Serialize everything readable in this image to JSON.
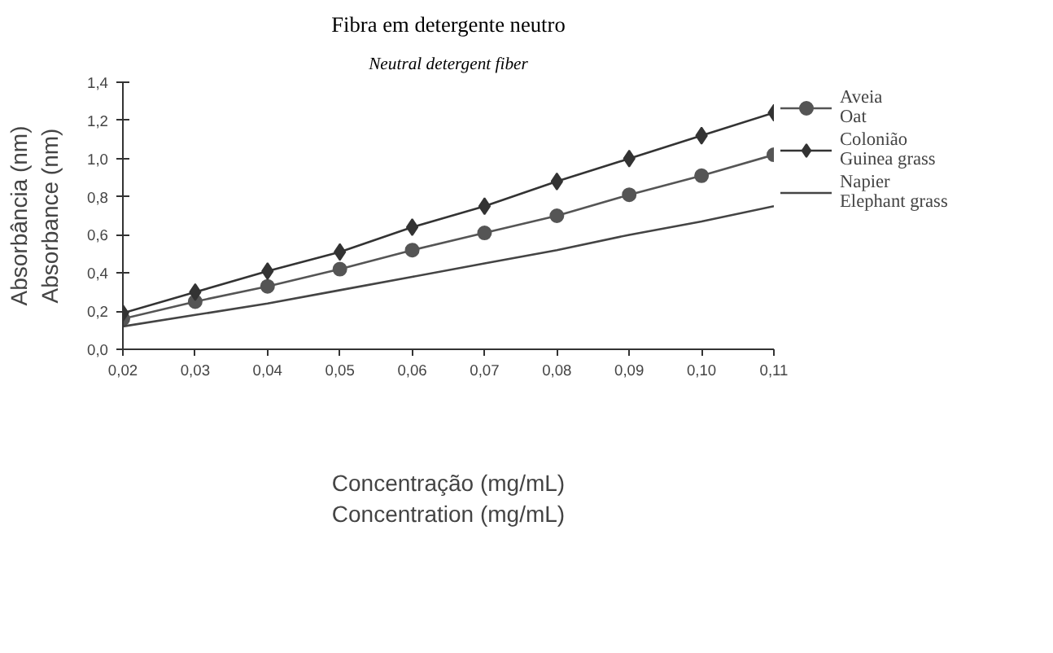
{
  "chart_data": {
    "type": "line",
    "title": "Fibra em detergente neutro",
    "subtitle": "Neutral detergent fiber",
    "xlabel": "Concentração (mg/mL)\nConcentration (mg/mL)",
    "ylabel": "Absorbância (nm)\nAbsorbance (nm)",
    "x": [
      0.02,
      0.03,
      0.04,
      0.05,
      0.06,
      0.07,
      0.08,
      0.09,
      0.1,
      0.11
    ],
    "series": [
      {
        "name": "Aveia\nOat",
        "color": "#555555",
        "marker": "circle",
        "values": [
          0.16,
          0.25,
          0.33,
          0.42,
          0.52,
          0.61,
          0.7,
          0.81,
          0.91,
          1.02
        ]
      },
      {
        "name": "Colonião\nGuinea grass",
        "color": "#333333",
        "marker": "diamond",
        "values": [
          0.19,
          0.3,
          0.41,
          0.51,
          0.64,
          0.75,
          0.88,
          1.0,
          1.12,
          1.24
        ]
      },
      {
        "name": "Napier\nElephant grass",
        "color": "#444444",
        "marker": "none",
        "values": [
          0.12,
          0.18,
          0.24,
          0.31,
          0.38,
          0.45,
          0.52,
          0.6,
          0.67,
          0.75
        ]
      }
    ],
    "xlim": [
      0.02,
      0.11
    ],
    "ylim": [
      0,
      1.4
    ],
    "xticks": [
      {
        "value": 0.02,
        "label": "0,02"
      },
      {
        "value": 0.03,
        "label": "0,03"
      },
      {
        "value": 0.04,
        "label": "0,04"
      },
      {
        "value": 0.05,
        "label": "0,05"
      },
      {
        "value": 0.06,
        "label": "0,06"
      },
      {
        "value": 0.07,
        "label": "0,07"
      },
      {
        "value": 0.08,
        "label": "0,08"
      },
      {
        "value": 0.09,
        "label": "0,09"
      },
      {
        "value": 0.1,
        "label": "0,10"
      },
      {
        "value": 0.11,
        "label": "0,11"
      }
    ],
    "yticks": [
      {
        "value": 0,
        "label": "0,0"
      },
      {
        "value": 0.2,
        "label": "0,2"
      },
      {
        "value": 0.4,
        "label": "0,4"
      },
      {
        "value": 0.6,
        "label": "0,6"
      },
      {
        "value": 0.8,
        "label": "0,8"
      },
      {
        "value": 1.0,
        "label": "1,0"
      },
      {
        "value": 1.2,
        "label": "1,2"
      },
      {
        "value": 1.4,
        "label": "1,4"
      }
    ],
    "grid": false,
    "legend": "right"
  }
}
